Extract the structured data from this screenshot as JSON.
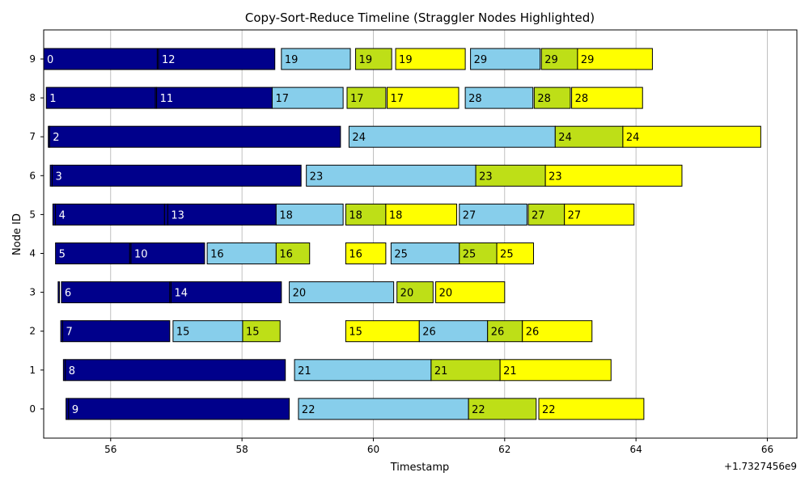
{
  "chart_data": {
    "type": "bar",
    "orientation": "horizontal-timeline",
    "title": "Copy-Sort-Reduce Timeline (Straggler Nodes Highlighted)",
    "xlabel": "Timestamp",
    "ylabel": "Node ID",
    "x_offset_label": "+1.7327456e9",
    "xlim": [
      54.98,
      66.45
    ],
    "xticks": [
      56,
      58,
      60,
      62,
      64,
      66
    ],
    "nodes": [
      0,
      1,
      2,
      3,
      4,
      5,
      6,
      7,
      8,
      9
    ],
    "straggler_nodes": [
      0,
      1,
      6,
      7
    ],
    "grid": "x",
    "colors": {
      "copy": "#00008b",
      "sort": "#87ceeb",
      "reduce_phase": "#bedf17",
      "final": "#ffff00",
      "straggler_tick": "#ff0000",
      "normal_tick": "#000000",
      "edge": "#000000"
    },
    "tasks": [
      {
        "node": 9,
        "start": 54.98,
        "end": 56.71,
        "label": "0",
        "phase": "copy"
      },
      {
        "node": 9,
        "start": 56.71,
        "end": 56.73,
        "label": "",
        "phase": "copy"
      },
      {
        "node": 9,
        "start": 56.73,
        "end": 58.5,
        "label": "12",
        "phase": "copy"
      },
      {
        "node": 9,
        "start": 58.6,
        "end": 59.65,
        "label": "19",
        "phase": "sort"
      },
      {
        "node": 9,
        "start": 59.73,
        "end": 60.28,
        "label": "19",
        "phase": "reduce_phase"
      },
      {
        "node": 9,
        "start": 60.34,
        "end": 61.4,
        "label": "19",
        "phase": "final"
      },
      {
        "node": 9,
        "start": 61.48,
        "end": 62.54,
        "label": "29",
        "phase": "sort"
      },
      {
        "node": 9,
        "start": 62.56,
        "end": 63.11,
        "label": "29",
        "phase": "reduce_phase"
      },
      {
        "node": 9,
        "start": 63.11,
        "end": 64.25,
        "label": "29",
        "phase": "final"
      },
      {
        "node": 8,
        "start": 55.02,
        "end": 56.68,
        "label": "1",
        "phase": "copy"
      },
      {
        "node": 8,
        "start": 56.68,
        "end": 56.7,
        "label": "",
        "phase": "copy"
      },
      {
        "node": 8,
        "start": 56.7,
        "end": 58.46,
        "label": "11",
        "phase": "copy"
      },
      {
        "node": 8,
        "start": 58.46,
        "end": 59.54,
        "label": "17",
        "phase": "sort"
      },
      {
        "node": 8,
        "start": 59.6,
        "end": 60.19,
        "label": "17",
        "phase": "reduce_phase"
      },
      {
        "node": 8,
        "start": 60.21,
        "end": 61.3,
        "label": "17",
        "phase": "final"
      },
      {
        "node": 8,
        "start": 61.4,
        "end": 62.43,
        "label": "28",
        "phase": "sort"
      },
      {
        "node": 8,
        "start": 62.45,
        "end": 63.0,
        "label": "28",
        "phase": "reduce_phase"
      },
      {
        "node": 8,
        "start": 63.02,
        "end": 64.1,
        "label": "28",
        "phase": "final"
      },
      {
        "node": 7,
        "start": 55.05,
        "end": 55.07,
        "label": "",
        "phase": "copy"
      },
      {
        "node": 7,
        "start": 55.07,
        "end": 59.5,
        "label": "2",
        "phase": "copy"
      },
      {
        "node": 7,
        "start": 59.63,
        "end": 62.77,
        "label": "24",
        "phase": "sort"
      },
      {
        "node": 7,
        "start": 62.77,
        "end": 63.8,
        "label": "24",
        "phase": "reduce_phase"
      },
      {
        "node": 7,
        "start": 63.8,
        "end": 65.9,
        "label": "24",
        "phase": "final"
      },
      {
        "node": 6,
        "start": 55.08,
        "end": 55.11,
        "label": "",
        "phase": "copy"
      },
      {
        "node": 6,
        "start": 55.11,
        "end": 58.9,
        "label": "3",
        "phase": "copy"
      },
      {
        "node": 6,
        "start": 58.98,
        "end": 61.56,
        "label": "23",
        "phase": "sort"
      },
      {
        "node": 6,
        "start": 61.56,
        "end": 62.62,
        "label": "23",
        "phase": "reduce_phase"
      },
      {
        "node": 6,
        "start": 62.62,
        "end": 64.7,
        "label": "23",
        "phase": "final"
      },
      {
        "node": 5,
        "start": 55.12,
        "end": 55.16,
        "label": "",
        "phase": "copy"
      },
      {
        "node": 5,
        "start": 55.16,
        "end": 56.82,
        "label": "4",
        "phase": "copy"
      },
      {
        "node": 5,
        "start": 56.82,
        "end": 56.87,
        "label": "",
        "phase": "copy"
      },
      {
        "node": 5,
        "start": 56.87,
        "end": 58.52,
        "label": "13",
        "phase": "copy"
      },
      {
        "node": 5,
        "start": 58.52,
        "end": 59.54,
        "label": "18",
        "phase": "sort"
      },
      {
        "node": 5,
        "start": 59.58,
        "end": 60.19,
        "label": "18",
        "phase": "reduce_phase"
      },
      {
        "node": 5,
        "start": 60.19,
        "end": 61.27,
        "label": "18",
        "phase": "final"
      },
      {
        "node": 5,
        "start": 61.31,
        "end": 62.34,
        "label": "27",
        "phase": "sort"
      },
      {
        "node": 5,
        "start": 62.36,
        "end": 62.91,
        "label": "27",
        "phase": "reduce_phase"
      },
      {
        "node": 5,
        "start": 62.91,
        "end": 63.97,
        "label": "27",
        "phase": "final"
      },
      {
        "node": 4,
        "start": 55.16,
        "end": 56.29,
        "label": "5",
        "phase": "copy"
      },
      {
        "node": 4,
        "start": 56.29,
        "end": 56.31,
        "label": "",
        "phase": "copy"
      },
      {
        "node": 4,
        "start": 56.31,
        "end": 57.43,
        "label": "10",
        "phase": "copy"
      },
      {
        "node": 4,
        "start": 57.47,
        "end": 58.52,
        "label": "16",
        "phase": "sort"
      },
      {
        "node": 4,
        "start": 58.52,
        "end": 59.03,
        "label": "16",
        "phase": "reduce_phase"
      },
      {
        "node": 4,
        "start": 59.58,
        "end": 60.19,
        "label": "16",
        "phase": "final"
      },
      {
        "node": 4,
        "start": 60.27,
        "end": 61.31,
        "label": "25",
        "phase": "sort"
      },
      {
        "node": 4,
        "start": 61.31,
        "end": 61.88,
        "label": "25",
        "phase": "reduce_phase"
      },
      {
        "node": 4,
        "start": 61.88,
        "end": 62.44,
        "label": "25",
        "phase": "final"
      },
      {
        "node": 3,
        "start": 55.2,
        "end": 55.22,
        "label": "",
        "phase": "copy"
      },
      {
        "node": 3,
        "start": 55.25,
        "end": 56.9,
        "label": "6",
        "phase": "copy"
      },
      {
        "node": 3,
        "start": 56.9,
        "end": 56.92,
        "label": "",
        "phase": "copy"
      },
      {
        "node": 3,
        "start": 56.92,
        "end": 58.6,
        "label": "14",
        "phase": "copy"
      },
      {
        "node": 3,
        "start": 58.72,
        "end": 60.31,
        "label": "20",
        "phase": "sort"
      },
      {
        "node": 3,
        "start": 60.36,
        "end": 60.91,
        "label": "20",
        "phase": "reduce_phase"
      },
      {
        "node": 3,
        "start": 60.95,
        "end": 62.0,
        "label": "20",
        "phase": "final"
      },
      {
        "node": 2,
        "start": 55.24,
        "end": 55.27,
        "label": "",
        "phase": "copy"
      },
      {
        "node": 2,
        "start": 55.27,
        "end": 56.9,
        "label": "7",
        "phase": "copy"
      },
      {
        "node": 2,
        "start": 56.95,
        "end": 58.01,
        "label": "15",
        "phase": "sort"
      },
      {
        "node": 2,
        "start": 58.01,
        "end": 58.58,
        "label": "15",
        "phase": "reduce_phase"
      },
      {
        "node": 2,
        "start": 59.58,
        "end": 60.7,
        "label": "15",
        "phase": "final"
      },
      {
        "node": 2,
        "start": 60.7,
        "end": 61.74,
        "label": "26",
        "phase": "sort"
      },
      {
        "node": 2,
        "start": 61.74,
        "end": 62.27,
        "label": "26",
        "phase": "reduce_phase"
      },
      {
        "node": 2,
        "start": 62.27,
        "end": 63.33,
        "label": "26",
        "phase": "final"
      },
      {
        "node": 1,
        "start": 55.28,
        "end": 55.31,
        "label": "",
        "phase": "copy"
      },
      {
        "node": 1,
        "start": 55.31,
        "end": 58.66,
        "label": "8",
        "phase": "copy"
      },
      {
        "node": 1,
        "start": 58.8,
        "end": 60.88,
        "label": "21",
        "phase": "sort"
      },
      {
        "node": 1,
        "start": 60.88,
        "end": 61.93,
        "label": "21",
        "phase": "reduce_phase"
      },
      {
        "node": 1,
        "start": 61.93,
        "end": 63.62,
        "label": "21",
        "phase": "final"
      },
      {
        "node": 0,
        "start": 55.32,
        "end": 55.36,
        "label": "",
        "phase": "copy"
      },
      {
        "node": 0,
        "start": 55.36,
        "end": 58.72,
        "label": "9",
        "phase": "copy"
      },
      {
        "node": 0,
        "start": 58.86,
        "end": 61.45,
        "label": "22",
        "phase": "sort"
      },
      {
        "node": 0,
        "start": 61.45,
        "end": 62.48,
        "label": "22",
        "phase": "reduce_phase"
      },
      {
        "node": 0,
        "start": 62.52,
        "end": 64.12,
        "label": "22",
        "phase": "final"
      }
    ]
  }
}
